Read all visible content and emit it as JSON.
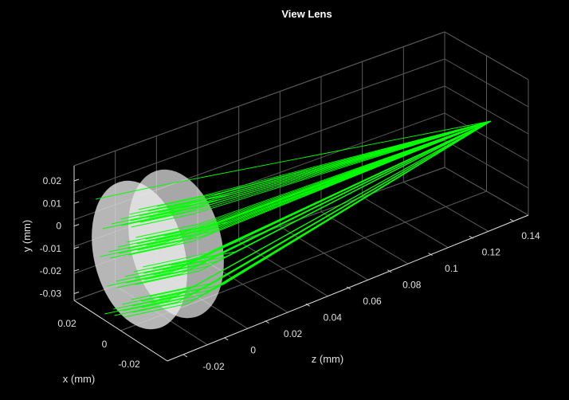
{
  "figure": {
    "title": "View Lens",
    "background_color": "#000000",
    "grid_color": "#5a5a5a",
    "axis_color": "#d9d9d9",
    "ray_color": "#00ff00",
    "lens_color": "#d6d6d6"
  },
  "chart_data": {
    "type": "3d-ray-trace",
    "title": "View Lens",
    "xlabel": "x (mm)",
    "ylabel": "y (mm)",
    "zlabel": "z (mm)",
    "x_ticks": [
      "0.02",
      "0",
      "-0.02"
    ],
    "y_ticks": [
      "0.02",
      "0.01",
      "0",
      "-0.01",
      "-0.02",
      "-0.03"
    ],
    "z_ticks": [
      "-0.02",
      "0",
      "0.02",
      "0.04",
      "0.06",
      "0.08",
      "0.1",
      "0.12",
      "0.14"
    ],
    "grid": true,
    "lens_surfaces": 2,
    "ray_count": 60
  }
}
